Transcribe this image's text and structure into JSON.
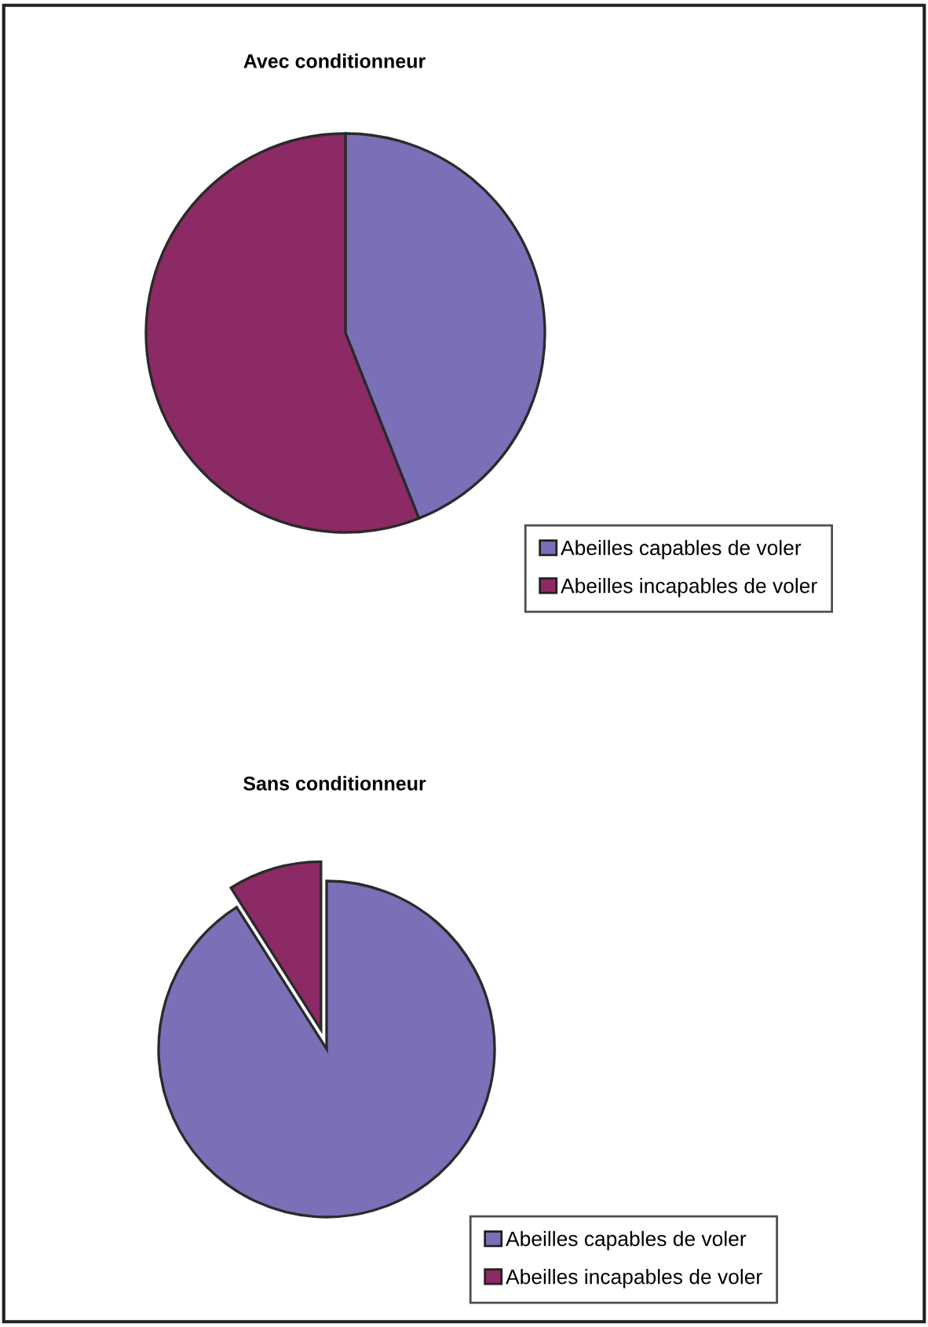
{
  "chart_data": [
    {
      "type": "pie",
      "title": "Avec conditionneur",
      "categories": [
        "Abeilles capables de voler",
        "Abeilles incapables de voler"
      ],
      "values": [
        44,
        56
      ],
      "colors": [
        "#7a70b8",
        "#8b2a65"
      ],
      "legend": "bottom right"
    },
    {
      "type": "pie",
      "title": "Sans conditionneur",
      "categories": [
        "Abeilles capables de voler",
        "Abeilles incapables de voler"
      ],
      "values": [
        91,
        9
      ],
      "colors": [
        "#7a70b8",
        "#8b2a65"
      ],
      "legend": "bottom right"
    }
  ]
}
